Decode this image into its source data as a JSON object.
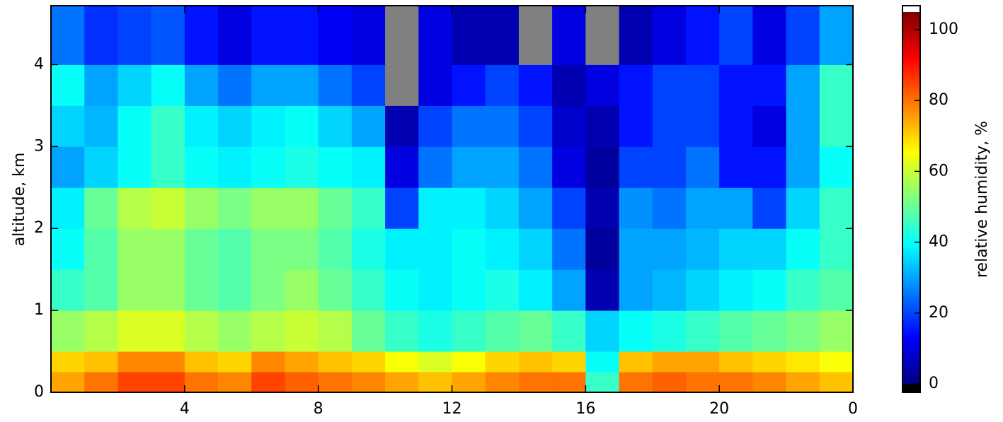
{
  "chart_data": {
    "type": "heatmap",
    "xlabel": null,
    "ylabel": "altitude, km",
    "x_edges": [
      0,
      1,
      2,
      3,
      4,
      5,
      6,
      7,
      8,
      9,
      10,
      11,
      12,
      13,
      14,
      15,
      16,
      17,
      18,
      19,
      20,
      21,
      22,
      23,
      24
    ],
    "y_edges": [
      0,
      0.25,
      0.5,
      1,
      1.5,
      2,
      2.5,
      3,
      3.5,
      4,
      4.72
    ],
    "values": [
      [
        75,
        80,
        85,
        85,
        80,
        78,
        85,
        82,
        80,
        78,
        75,
        72,
        75,
        78,
        80,
        80,
        45,
        80,
        82,
        80,
        80,
        78,
        75,
        72
      ],
      [
        70,
        72,
        78,
        78,
        72,
        70,
        78,
        75,
        72,
        70,
        65,
        62,
        65,
        70,
        72,
        70,
        40,
        72,
        75,
        75,
        72,
        70,
        68,
        65
      ],
      [
        55,
        58,
        62,
        62,
        58,
        55,
        58,
        60,
        58,
        50,
        45,
        42,
        45,
        48,
        50,
        45,
        35,
        40,
        42,
        45,
        48,
        50,
        52,
        55
      ],
      [
        45,
        48,
        55,
        55,
        50,
        48,
        52,
        55,
        50,
        45,
        40,
        38,
        40,
        42,
        38,
        30,
        5,
        30,
        32,
        35,
        38,
        40,
        45,
        48
      ],
      [
        40,
        48,
        55,
        55,
        50,
        48,
        52,
        52,
        48,
        42,
        38,
        38,
        40,
        38,
        35,
        25,
        3,
        30,
        30,
        32,
        35,
        35,
        40,
        45
      ],
      [
        38,
        50,
        58,
        60,
        55,
        52,
        55,
        55,
        50,
        45,
        20,
        38,
        38,
        35,
        30,
        20,
        5,
        28,
        25,
        30,
        30,
        20,
        35,
        45
      ],
      [
        30,
        35,
        40,
        45,
        40,
        38,
        40,
        42,
        40,
        38,
        10,
        25,
        30,
        30,
        25,
        10,
        3,
        20,
        20,
        25,
        15,
        15,
        30,
        40
      ],
      [
        35,
        32,
        40,
        45,
        38,
        35,
        38,
        40,
        35,
        30,
        5,
        20,
        25,
        25,
        20,
        8,
        5,
        15,
        20,
        20,
        15,
        10,
        30,
        45
      ],
      [
        40,
        30,
        35,
        40,
        30,
        25,
        30,
        30,
        25,
        20,
        null,
        10,
        15,
        20,
        15,
        5,
        10,
        15,
        20,
        20,
        15,
        15,
        30,
        45
      ],
      [
        25,
        18,
        20,
        22,
        15,
        10,
        15,
        15,
        12,
        10,
        null,
        10,
        5,
        5,
        null,
        10,
        null,
        5,
        10,
        15,
        20,
        10,
        20,
        30
      ]
    ],
    "colormap": "jet",
    "nan_color": "#808080",
    "xlim": [
      0,
      24
    ],
    "ylim": [
      0,
      4.72
    ],
    "xticks": [
      4,
      8,
      12,
      16,
      20,
      {
        "value": 24,
        "label": "0"
      }
    ],
    "yticks": [
      0,
      1,
      2,
      3,
      4
    ],
    "colorbar": {
      "label": "relative humidity, %",
      "clim": [
        0,
        105
      ],
      "ticks": [
        0,
        20,
        40,
        60,
        80,
        100
      ]
    }
  }
}
